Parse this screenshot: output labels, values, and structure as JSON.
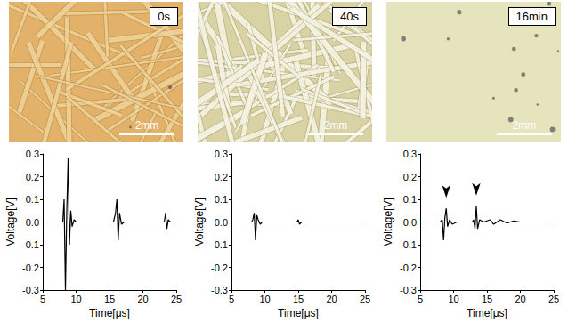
{
  "photos": [
    {
      "label": "0s",
      "scale_bar": "2mm"
    },
    {
      "label": "40s",
      "scale_bar": "2mm"
    },
    {
      "label": "16min",
      "scale_bar": "2mm"
    }
  ],
  "chart_data": [
    {
      "type": "line",
      "color": "#000000",
      "grid": false,
      "x_label": "Time[μs]",
      "y_label": "Voltage[V]",
      "xlim": [
        5,
        25
      ],
      "xticks": [
        5,
        10,
        15,
        20,
        25
      ],
      "ylim": [
        -0.3,
        0.3
      ],
      "yticks": [
        -0.3,
        -0.2,
        -0.1,
        {
          "value": 0,
          "label": "0.0"
        },
        0.1,
        0.2,
        0.3
      ],
      "x": [
        5,
        8,
        8.2,
        8.4,
        8.6,
        8.8,
        9.0,
        9.2,
        9.4,
        9.7,
        10,
        15.6,
        15.9,
        16.1,
        16.3,
        16.5,
        16.8,
        17.2,
        23.2,
        23.4,
        23.6,
        23.8,
        24.1,
        25
      ],
      "values": [
        0,
        0,
        0.1,
        -0.3,
        0.05,
        0.28,
        -0.1,
        0.05,
        -0.02,
        0.01,
        0,
        0,
        0.04,
        0.1,
        -0.08,
        0.04,
        -0.01,
        0,
        0,
        0.04,
        -0.03,
        0.01,
        0,
        0
      ]
    },
    {
      "type": "line",
      "color": "#000000",
      "grid": false,
      "x_label": "Time[μs]",
      "y_label": "Voltage[V]",
      "xlim": [
        5,
        25
      ],
      "xticks": [
        5,
        10,
        15,
        20,
        25
      ],
      "ylim": [
        -0.3,
        0.3
      ],
      "yticks": [
        -0.3,
        -0.2,
        -0.1,
        {
          "value": 0,
          "label": "0.0"
        },
        0.1,
        0.2,
        0.3
      ],
      "x": [
        5,
        8,
        8.2,
        8.4,
        8.6,
        8.8,
        9.0,
        9.3,
        9.6,
        10,
        14.8,
        15.0,
        15.2,
        15.5,
        25
      ],
      "values": [
        0,
        0,
        0.01,
        0.04,
        -0.08,
        0.03,
        0.01,
        -0.01,
        0,
        0,
        0,
        0.01,
        -0.01,
        0,
        0
      ]
    },
    {
      "type": "line",
      "color": "#000000",
      "grid": false,
      "x_label": "Time[μs]",
      "y_label": "Voltage[V]",
      "xlim": [
        5,
        25
      ],
      "xticks": [
        5,
        10,
        15,
        20,
        25
      ],
      "ylim": [
        -0.3,
        0.3
      ],
      "yticks": [
        -0.3,
        -0.2,
        -0.1,
        {
          "value": 0,
          "label": "0.0"
        },
        0.1,
        0.2,
        0.3
      ],
      "x": [
        5,
        8,
        8.3,
        8.5,
        8.7,
        8.9,
        9.1,
        9.4,
        9.8,
        10.5,
        12.8,
        13.0,
        13.2,
        13.4,
        13.6,
        13.9,
        14.5,
        15.5,
        16,
        17,
        18,
        19,
        20,
        21,
        25
      ],
      "values": [
        0,
        0,
        0.01,
        -0.08,
        0.02,
        0.06,
        -0.02,
        0.01,
        -0.01,
        0,
        0,
        0.01,
        -0.03,
        0.07,
        -0.03,
        0.01,
        0,
        0.01,
        -0.01,
        0.01,
        -0.005,
        0.005,
        0,
        0,
        0
      ],
      "arrows": [
        {
          "x": 8.9,
          "y": 0.06
        },
        {
          "x": 13.4,
          "y": 0.07
        }
      ]
    }
  ]
}
